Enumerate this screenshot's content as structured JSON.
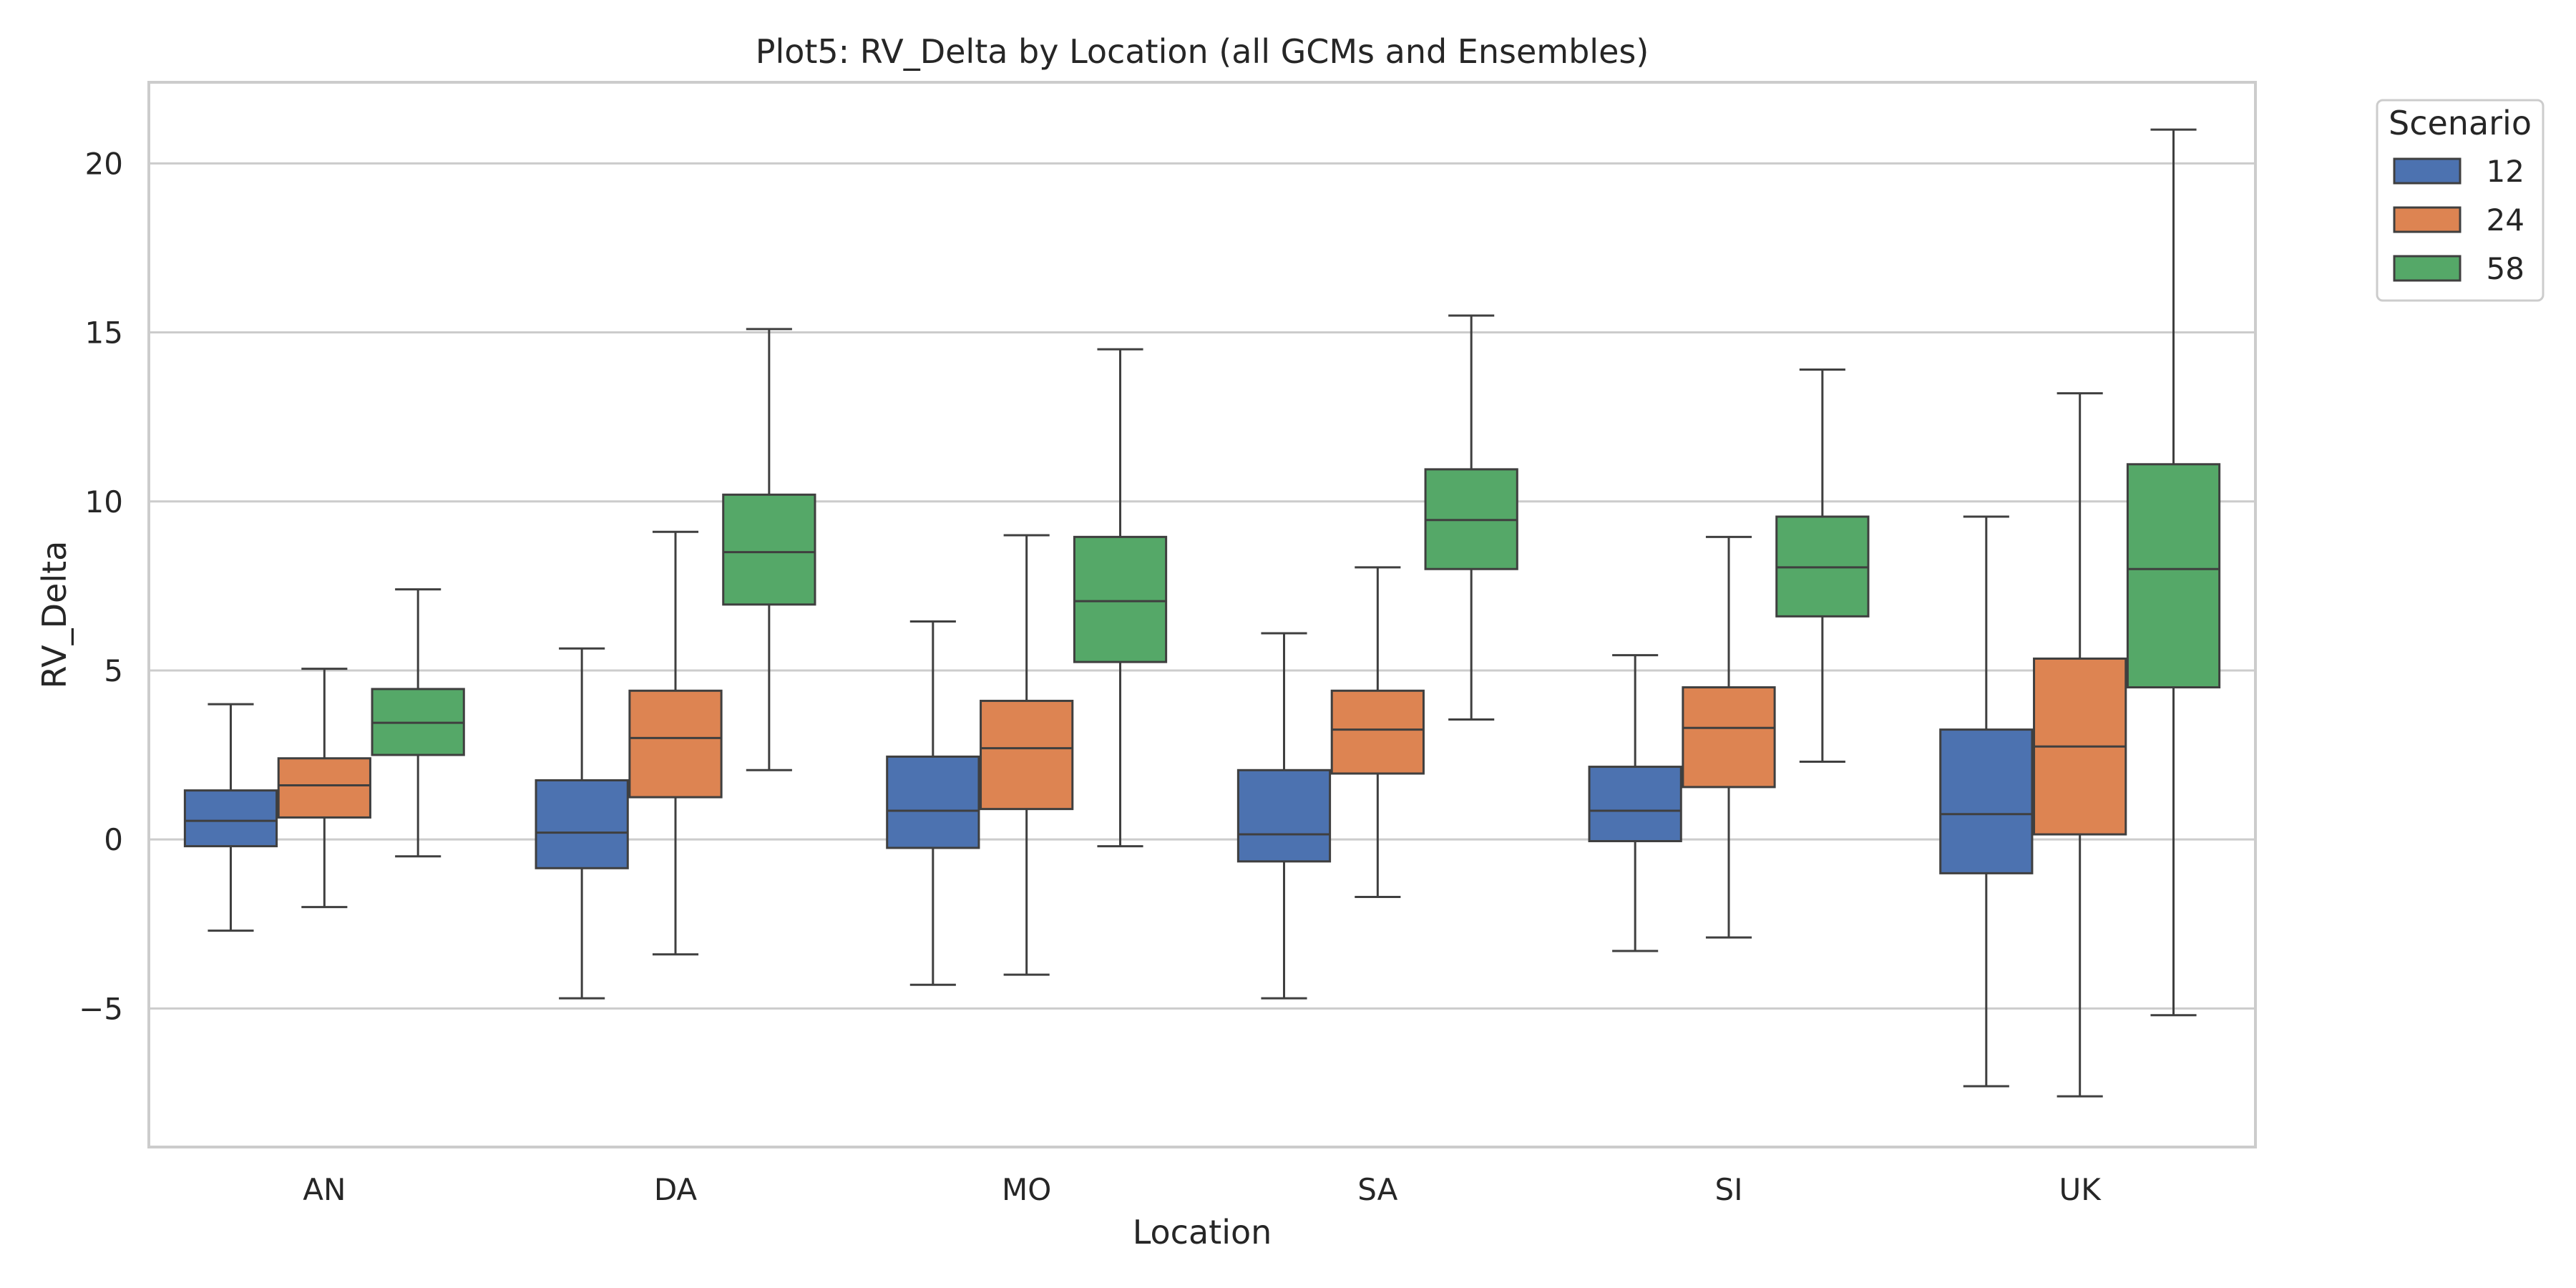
{
  "chart_data": {
    "type": "box",
    "title": "Plot5: RV_Delta by Location (all GCMs and Ensembles)",
    "xlabel": "Location",
    "ylabel": "RV_Delta",
    "categories": [
      "AN",
      "DA",
      "MO",
      "SA",
      "SI",
      "UK"
    ],
    "ylim": [
      -9.1,
      22.4
    ],
    "yticks": [
      -5,
      0,
      5,
      10,
      15,
      20
    ],
    "ytick_labels": [
      "−5",
      "0",
      "5",
      "10",
      "15",
      "20"
    ],
    "grid": "horizontal",
    "legend": {
      "title": "Scenario",
      "position": "outside-top-right"
    },
    "series": [
      {
        "name": "12",
        "color": "#4c72b0",
        "boxes": [
          {
            "whislo": -2.7,
            "q1": -0.2,
            "med": 0.55,
            "q3": 1.45,
            "whishi": 4.0
          },
          {
            "whislo": -4.7,
            "q1": -0.85,
            "med": 0.2,
            "q3": 1.75,
            "whishi": 5.65
          },
          {
            "whislo": -4.3,
            "q1": -0.25,
            "med": 0.85,
            "q3": 2.45,
            "whishi": 6.45
          },
          {
            "whislo": -4.7,
            "q1": -0.65,
            "med": 0.15,
            "q3": 2.05,
            "whishi": 6.1
          },
          {
            "whislo": -3.3,
            "q1": -0.05,
            "med": 0.85,
            "q3": 2.15,
            "whishi": 5.45
          },
          {
            "whislo": -7.3,
            "q1": -1.0,
            "med": 0.75,
            "q3": 3.25,
            "whishi": 9.55
          }
        ]
      },
      {
        "name": "24",
        "color": "#dd8452",
        "boxes": [
          {
            "whislo": -2.0,
            "q1": 0.65,
            "med": 1.6,
            "q3": 2.4,
            "whishi": 5.05
          },
          {
            "whislo": -3.4,
            "q1": 1.25,
            "med": 3.0,
            "q3": 4.4,
            "whishi": 9.1
          },
          {
            "whislo": -4.0,
            "q1": 0.9,
            "med": 2.7,
            "q3": 4.1,
            "whishi": 9.0
          },
          {
            "whislo": -1.7,
            "q1": 1.95,
            "med": 3.25,
            "q3": 4.4,
            "whishi": 8.05
          },
          {
            "whislo": -2.9,
            "q1": 1.55,
            "med": 3.3,
            "q3": 4.5,
            "whishi": 8.95
          },
          {
            "whislo": -7.6,
            "q1": 0.15,
            "med": 2.75,
            "q3": 5.35,
            "whishi": 13.2
          }
        ]
      },
      {
        "name": "58",
        "color": "#55a868",
        "boxes": [
          {
            "whislo": -0.5,
            "q1": 2.5,
            "med": 3.45,
            "q3": 4.45,
            "whishi": 7.4
          },
          {
            "whislo": 2.05,
            "q1": 6.95,
            "med": 8.5,
            "q3": 10.2,
            "whishi": 15.1
          },
          {
            "whislo": -0.2,
            "q1": 5.25,
            "med": 7.05,
            "q3": 8.95,
            "whishi": 14.5
          },
          {
            "whislo": 3.55,
            "q1": 8.0,
            "med": 9.45,
            "q3": 10.95,
            "whishi": 15.5
          },
          {
            "whislo": 2.3,
            "q1": 6.6,
            "med": 8.05,
            "q3": 9.55,
            "whishi": 13.9
          },
          {
            "whislo": -5.2,
            "q1": 4.5,
            "med": 8.0,
            "q3": 11.1,
            "whishi": 21.0
          }
        ]
      }
    ]
  }
}
